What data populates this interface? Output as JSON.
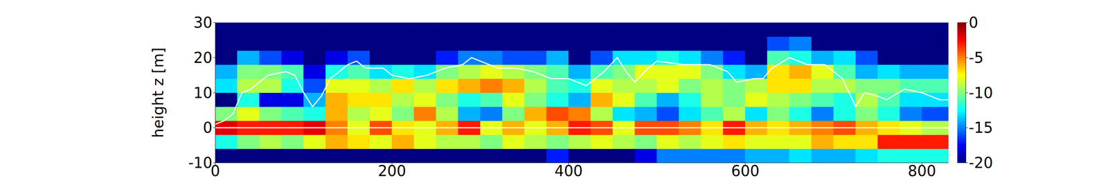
{
  "chart_data": {
    "type": "heatmap",
    "ylabel": "height z [m]",
    "xlim": [
      0,
      830
    ],
    "xticks": [
      0,
      200,
      400,
      600,
      800
    ],
    "ylim": [
      -10,
      30
    ],
    "yticks": [
      -10,
      0,
      10,
      20,
      30
    ],
    "heatmap": {
      "x_bins": [
        0,
        25,
        50,
        75,
        100,
        125,
        150,
        175,
        200,
        225,
        250,
        275,
        300,
        325,
        350,
        375,
        400,
        425,
        450,
        475,
        500,
        525,
        550,
        575,
        600,
        625,
        650,
        675,
        700,
        725,
        750,
        775,
        800,
        830
      ],
      "z_bins": [
        -10,
        -6,
        -2,
        2,
        6,
        10,
        14,
        18,
        22,
        26,
        30
      ],
      "values": [
        [
          -20,
          -12,
          -2,
          -10,
          -20,
          -13,
          -14,
          -20,
          -20,
          -20
        ],
        [
          -20,
          -10,
          -3,
          -8,
          -12,
          -9,
          -10,
          -14,
          -20,
          -20
        ],
        [
          -20,
          -9,
          -3,
          -10,
          -18,
          -9,
          -10,
          -16,
          -20,
          -20
        ],
        [
          -20,
          -10,
          -3,
          -11,
          -18,
          -12,
          -11,
          -18,
          -20,
          -20
        ],
        [
          -20,
          -8,
          -2,
          -12,
          -14,
          -16,
          -18,
          -20,
          -20,
          -20
        ],
        [
          -20,
          -6,
          -5,
          -6,
          -6,
          -8,
          -12,
          -18,
          -20,
          -20
        ],
        [
          -20,
          -7,
          -8,
          -9,
          -7,
          -8,
          -11,
          -16,
          -20,
          -20
        ],
        [
          -20,
          -8,
          -4,
          -8,
          -7,
          -9,
          -13,
          -20,
          -20,
          -20
        ],
        [
          -20,
          -6,
          -7,
          -10,
          -9,
          -7,
          -12,
          -20,
          -20,
          -20
        ],
        [
          -20,
          -8,
          -8,
          -5,
          -8,
          -9,
          -13,
          -20,
          -20,
          -20
        ],
        [
          -20,
          -9,
          -6,
          -9,
          -10,
          -7,
          -10,
          -17,
          -20,
          -20
        ],
        [
          -20,
          -9,
          -3,
          -14,
          -12,
          -6,
          -9,
          -15,
          -20,
          -20
        ],
        [
          -20,
          -10,
          -8,
          -15,
          -11,
          -5,
          -8,
          -15,
          -20,
          -20
        ],
        [
          -20,
          -8,
          -6,
          -10,
          -8,
          -6,
          -9,
          -16,
          -20,
          -20
        ],
        [
          -20,
          -9,
          -8,
          -6,
          -10,
          -9,
          -10,
          -16,
          -20,
          -20
        ],
        [
          -17,
          -10,
          -6,
          -4,
          -12,
          -11,
          -11,
          -14,
          -20,
          -20
        ],
        [
          -20,
          -9,
          -3,
          -5,
          -14,
          -12,
          -14,
          -20,
          -20,
          -20
        ],
        [
          -20,
          -8,
          -4,
          -9,
          -6,
          -8,
          -11,
          -16,
          -20,
          -20
        ],
        [
          -20,
          -9,
          -8,
          -13,
          -8,
          -9,
          -10,
          -13,
          -20,
          -20
        ],
        [
          -18,
          -10,
          -4,
          -14,
          -11,
          -9,
          -8,
          -13,
          -20,
          -20
        ],
        [
          -15,
          -8,
          -4,
          -16,
          -14,
          -8,
          -8,
          -12,
          -20,
          -20
        ],
        [
          -15,
          -9,
          -5,
          -13,
          -12,
          -10,
          -8,
          -13,
          -20,
          -20
        ],
        [
          -15,
          -8,
          -7,
          -11,
          -9,
          -9,
          -10,
          -15,
          -20,
          -20
        ],
        [
          -15,
          -7,
          -3,
          -9,
          -10,
          -10,
          -13,
          -17,
          -20,
          -20
        ],
        [
          -14,
          -8,
          -6,
          -13,
          -8,
          -9,
          -14,
          -20,
          -20,
          -20
        ],
        [
          -14,
          -8,
          -7,
          -10,
          -9,
          -7,
          -7,
          -11,
          -16,
          -20
        ],
        [
          -13,
          -8,
          -6,
          -12,
          -10,
          -7,
          -6,
          -12,
          -15,
          -20
        ],
        [
          -14,
          -6,
          -5,
          -15,
          -11,
          -9,
          -8,
          -14,
          -20,
          -20
        ],
        [
          -14,
          -7,
          -4,
          -12,
          -12,
          -9,
          -11,
          -13,
          -20,
          -20
        ],
        [
          -13,
          -7,
          -6,
          -10,
          -9,
          -10,
          -14,
          -16,
          -20,
          -20
        ],
        [
          -12,
          -3,
          -7,
          -12,
          -11,
          -10,
          -13,
          -20,
          -20,
          -20
        ],
        [
          -12,
          -3,
          -8,
          -15,
          -13,
          -11,
          -14,
          -20,
          -20,
          -20
        ],
        [
          -12,
          -3,
          -9,
          -16,
          -13,
          -11,
          -14,
          -20,
          -20,
          -20
        ]
      ]
    },
    "line": {
      "color": "#ffffff",
      "x": [
        0,
        10,
        20,
        30,
        40,
        50,
        60,
        80,
        90,
        100,
        110,
        120,
        130,
        150,
        160,
        170,
        190,
        200,
        220,
        240,
        260,
        280,
        290,
        300,
        320,
        340,
        360,
        380,
        400,
        420,
        440,
        455,
        465,
        475,
        490,
        500,
        530,
        560,
        580,
        590,
        610,
        620,
        630,
        650,
        670,
        690,
        710,
        725,
        735,
        750,
        760,
        780,
        800,
        820,
        830
      ],
      "y": [
        1,
        2,
        4,
        10,
        11,
        13,
        15,
        16,
        15,
        10,
        6,
        9,
        14,
        18,
        19,
        17,
        17,
        15,
        14,
        15,
        17,
        18,
        20,
        19,
        17,
        17,
        16,
        14,
        14,
        12,
        16,
        20,
        16,
        13,
        17,
        19,
        18,
        18,
        16,
        13,
        14,
        14,
        17,
        20,
        18,
        18,
        14,
        6,
        10,
        9,
        8,
        11,
        10,
        8,
        8
      ]
    },
    "hline": {
      "y": 0,
      "color": "#ffffff"
    },
    "colorbar": {
      "range": [
        -20,
        0
      ],
      "ticks": [
        0,
        -5,
        -10,
        -15,
        -20
      ]
    }
  }
}
